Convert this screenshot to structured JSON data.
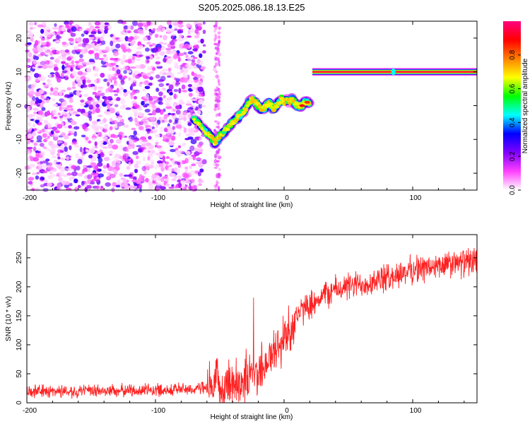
{
  "title": "S205.2025.086.18.13.E25",
  "chart_data": [
    {
      "type": "heatmap",
      "xlabel": "Height of straight line (km)",
      "ylabel": "Frequency (Hz)",
      "xlim": [
        -200,
        150
      ],
      "ylim": [
        -25,
        25
      ],
      "xticks": [
        -200,
        -100,
        0,
        100
      ],
      "yticks": [
        -20,
        -10,
        0,
        10,
        20
      ],
      "colorbar": {
        "label": "Normalized spectral amplitude",
        "range": [
          0,
          1
        ],
        "ticks": [
          0.0,
          0.2,
          0.4,
          0.6,
          0.8
        ],
        "colormap": [
          "#ffffff",
          "#ff40ff",
          "#8000ff",
          "#0000ff",
          "#00ffff",
          "#00ff00",
          "#ffff00",
          "#ff8000",
          "#ff0000",
          "#ff0080"
        ]
      },
      "ridge": {
        "x": [
          -70,
          -65,
          -60,
          -57,
          -54,
          -52,
          -50,
          -47,
          -45,
          -42,
          -40,
          -37,
          -35,
          -32,
          -30,
          -27,
          -25,
          -22,
          -20,
          -18,
          -16,
          -14,
          -12,
          -10,
          -8,
          -6,
          -4,
          -2,
          0,
          2,
          4,
          6,
          8,
          10,
          12,
          14,
          16,
          18,
          20
        ],
        "y": [
          -4,
          -6,
          -8,
          -9,
          -11,
          -10,
          -9,
          -8,
          -7,
          -6,
          -5,
          -4,
          -3,
          -2,
          -1,
          1,
          2,
          1,
          0,
          -1,
          -1,
          0,
          1,
          0,
          -1,
          0,
          1,
          2,
          1,
          2,
          1,
          2,
          1,
          0,
          0,
          0,
          1,
          1,
          0
        ]
      },
      "line_band": {
        "y": 10,
        "x_start": 22,
        "x_end": 150,
        "marker_x": 85
      },
      "noise_region": {
        "x_start": -200,
        "x_end": -70
      }
    },
    {
      "type": "line",
      "xlabel": "Height of straight line (km)",
      "ylabel": "SNR (10 * v/v)",
      "xlim": [
        -200,
        150
      ],
      "ylim": [
        0,
        290
      ],
      "xticks": [
        -200,
        -100,
        0,
        100
      ],
      "yticks": [
        0,
        50,
        100,
        150,
        200,
        250
      ],
      "color": "#ff2020",
      "trend": {
        "x": [
          -200,
          -150,
          -100,
          -60,
          -50,
          -40,
          -30,
          -20,
          -10,
          0,
          10,
          20,
          30,
          40,
          60,
          80,
          100,
          120,
          150
        ],
        "y": [
          20,
          20,
          22,
          25,
          30,
          35,
          40,
          55,
          80,
          110,
          150,
          170,
          185,
          195,
          205,
          215,
          230,
          235,
          245
        ]
      }
    }
  ]
}
